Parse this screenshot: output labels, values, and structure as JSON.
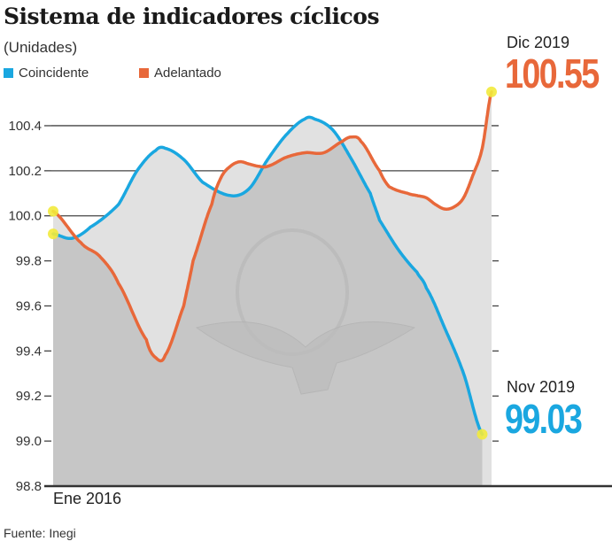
{
  "chart_data": {
    "type": "line",
    "title": "Sistema de indicadores cíclicos",
    "subtitle": "(Unidades)",
    "xlabel": "",
    "ylabel": "",
    "x_start_label": "Ene 2016",
    "ylim": [
      98.8,
      100.6
    ],
    "yticks": [
      "98.8",
      "99.0",
      "99.2",
      "99.4",
      "99.6",
      "99.8",
      "100.0",
      "100.2",
      "100.4"
    ],
    "grid": true,
    "legend": "top-left",
    "series": [
      {
        "name": "Coincidente",
        "color": "#1aa7e0",
        "x": [
          0,
          2,
          4,
          7,
          9,
          11,
          12,
          14,
          16,
          19,
          21,
          23,
          25,
          27,
          28,
          30,
          32,
          34,
          35,
          37,
          39,
          40,
          42,
          44,
          46
        ],
        "values": [
          99.92,
          99.9,
          99.95,
          100.05,
          100.2,
          100.29,
          100.3,
          100.25,
          100.15,
          100.09,
          100.12,
          100.25,
          100.36,
          100.43,
          100.43,
          100.38,
          100.25,
          100.1,
          99.98,
          99.85,
          99.75,
          99.68,
          99.5,
          99.3,
          99.03
        ]
      },
      {
        "name": "Adelantado",
        "color": "#e8683a",
        "x": [
          0,
          3,
          5,
          7,
          10,
          11,
          12,
          14,
          15,
          17,
          18,
          19,
          20,
          21,
          22,
          23,
          25,
          27,
          29,
          31,
          32,
          33,
          35,
          36,
          38,
          39,
          40,
          41,
          42,
          43,
          44,
          45,
          46,
          47
        ],
        "values": [
          100.02,
          99.88,
          99.82,
          99.7,
          99.45,
          99.37,
          99.38,
          99.6,
          99.8,
          100.05,
          100.17,
          100.22,
          100.24,
          100.23,
          100.22,
          100.22,
          100.26,
          100.28,
          100.28,
          100.33,
          100.35,
          100.33,
          100.2,
          100.13,
          100.1,
          100.09,
          100.08,
          100.05,
          100.03,
          100.04,
          100.08,
          100.18,
          100.3,
          100.55
        ]
      }
    ],
    "annotations": [
      {
        "label": "Dic 2019",
        "value": "100.55",
        "series": "Adelantado"
      },
      {
        "label": "Nov 2019",
        "value": "99.03",
        "series": "Coincidente"
      }
    ],
    "highlight_color": "#f2ea3c"
  },
  "source": "Fuente: Inegi"
}
